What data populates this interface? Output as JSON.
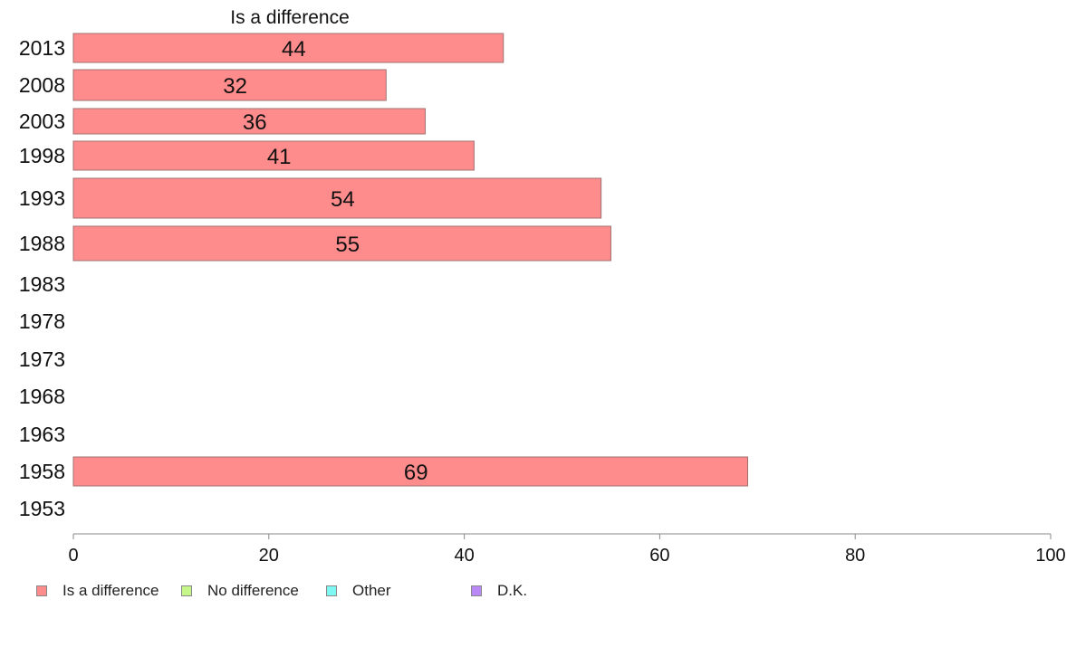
{
  "chart_data": {
    "type": "bar",
    "orientation": "horizontal",
    "title": "Is a difference",
    "categories": [
      "2013",
      "2008",
      "2003",
      "1998",
      "1993",
      "1988",
      "1983",
      "1978",
      "1973",
      "1968",
      "1963",
      "1958",
      "1953"
    ],
    "series": [
      {
        "name": "Is a difference",
        "values": [
          44,
          32,
          36,
          41,
          54,
          55,
          null,
          null,
          null,
          null,
          null,
          69,
          null
        ],
        "color": "#ff8c8c"
      }
    ],
    "data_labels": [
      "44",
      "32",
      "36",
      "41",
      "54",
      "55",
      "",
      "",
      "",
      "",
      "",
      "69",
      ""
    ],
    "xlim": [
      0,
      100
    ],
    "xticks": [
      0,
      20,
      40,
      60,
      80,
      100
    ],
    "xtick_labels": [
      "0",
      "20",
      "40",
      "60",
      "80",
      "100"
    ],
    "grid": false,
    "legend_placement": "bottom-left",
    "legend": [
      {
        "label": "Is a difference",
        "color": "#ff8c8c"
      },
      {
        "label": "No difference",
        "color": "#c6f58a"
      },
      {
        "label": "Other",
        "color": "#7ff7f2"
      },
      {
        "label": "D.K.",
        "color": "#b98af5"
      }
    ]
  }
}
